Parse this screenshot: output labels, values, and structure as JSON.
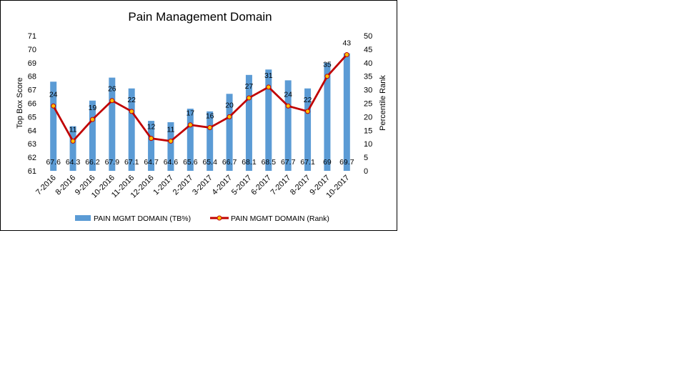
{
  "chart_data": {
    "type": "bar",
    "title": "Pain Management Domain",
    "categories": [
      "7-2016",
      "8-2016",
      "9-2016",
      "10-2016",
      "11-2016",
      "12-2016",
      "1-2017",
      "2-2017",
      "3-2017",
      "4-2017",
      "5-2017",
      "6-2017",
      "7-2017",
      "8-2017",
      "9-2017",
      "10-2017"
    ],
    "series": [
      {
        "name": "PAIN MGMT DOMAIN (TB%)",
        "type": "bar",
        "axis": "left",
        "color": "#5B9BD5",
        "values": [
          67.6,
          64.3,
          66.2,
          67.9,
          67.1,
          64.7,
          64.6,
          65.6,
          65.4,
          66.7,
          68.1,
          68.5,
          67.7,
          67.1,
          69,
          69.7
        ],
        "labels": [
          "67.6",
          "64.3",
          "66.2",
          "67.9",
          "67.1",
          "64.7",
          "64.6",
          "65.6",
          "65.4",
          "66.7",
          "68.1",
          "68.5",
          "67.7",
          "67.1",
          "69",
          "69.7"
        ]
      },
      {
        "name": "PAIN MGMT DOMAIN (Rank)",
        "type": "line",
        "axis": "right",
        "color": "#C00000",
        "marker_color": "#FFC000",
        "values": [
          24,
          11,
          19,
          26,
          22,
          12,
          11,
          17,
          16,
          20,
          27,
          31,
          24,
          22,
          35,
          43
        ],
        "labels": [
          "24",
          "11",
          "19",
          "26",
          "22",
          "12",
          "11",
          "17",
          "16",
          "20",
          "27",
          "31",
          "24",
          "22",
          "35",
          "43"
        ]
      }
    ],
    "ylabel": "Top Box Score",
    "y2label": "Percentile Rank",
    "ylim": [
      61,
      71
    ],
    "y2lim": [
      0,
      50
    ],
    "yticks": [
      "61",
      "62",
      "63",
      "64",
      "65",
      "66",
      "67",
      "68",
      "69",
      "70",
      "71"
    ],
    "y2ticks": [
      "0",
      "5",
      "10",
      "15",
      "20",
      "25",
      "30",
      "35",
      "40",
      "45",
      "50"
    ],
    "grid": false,
    "legend": "bottom"
  }
}
